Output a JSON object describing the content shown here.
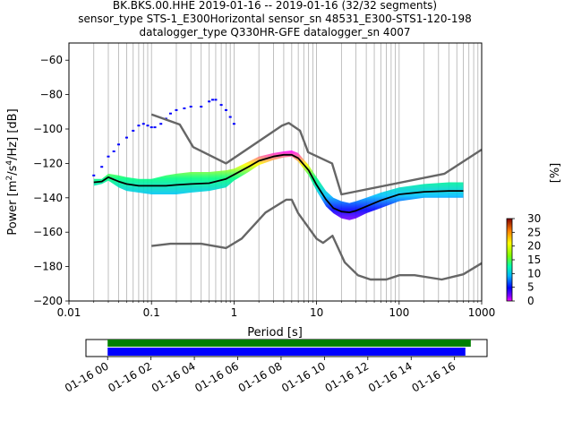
{
  "chart_data": {
    "type": "line",
    "title_lines": [
      "BK.BKS.00.HHE   2019-01-16 -- 2019-01-16  (32/32 segments)",
      "sensor_type STS-1_E300Horizontal sensor_sn 48531_E300-STS1-120-198",
      "datalogger_type Q330HR-GFE datalogger_sn 4007"
    ],
    "xlabel": "Period [s]",
    "ylabel_parts": [
      "Power [m",
      "2",
      "/s",
      "4",
      "/Hz] [dB]"
    ],
    "xscale": "log",
    "xlim": [
      0.01,
      1000
    ],
    "ylim": [
      -200,
      -50
    ],
    "xticks": [
      {
        "v": 0.01,
        "label": "0.01"
      },
      {
        "v": 0.1,
        "label": "0.1"
      },
      {
        "v": 1,
        "label": "1"
      },
      {
        "v": 10,
        "label": "10"
      },
      {
        "v": 100,
        "label": "100"
      },
      {
        "v": 1000,
        "label": "1000"
      }
    ],
    "yticks": [
      {
        "v": -60,
        "label": "−60"
      },
      {
        "v": -80,
        "label": "−80"
      },
      {
        "v": -100,
        "label": "−100"
      },
      {
        "v": -120,
        "label": "−120"
      },
      {
        "v": -140,
        "label": "−140"
      },
      {
        "v": -160,
        "label": "−160"
      },
      {
        "v": -180,
        "label": "−180"
      },
      {
        "v": -200,
        "label": "−200"
      }
    ],
    "grid_periods": [
      0.02,
      0.03,
      0.04,
      0.05,
      0.06,
      0.07,
      0.08,
      0.09,
      0.2,
      0.3,
      0.4,
      0.5,
      0.6,
      0.7,
      0.8,
      0.9,
      2,
      3,
      4,
      5,
      6,
      7,
      8,
      9,
      20,
      30,
      40,
      50,
      60,
      70,
      80,
      90,
      200,
      300,
      400,
      500,
      600,
      700,
      800,
      900
    ],
    "series": [
      {
        "name": "NHNM",
        "color": "#666666",
        "x": [
          0.1,
          0.22,
          0.32,
          0.8,
          3.8,
          4.6,
          6.3,
          7.9,
          15.4,
          20,
          354.8,
          1000
        ],
        "y": [
          -91.5,
          -97.4,
          -110.5,
          -120,
          -98,
          -96.5,
          -101,
          -113.5,
          -120,
          -138,
          -126,
          -112
        ]
      },
      {
        "name": "NLNM",
        "color": "#666666",
        "x": [
          0.1,
          0.17,
          0.4,
          0.8,
          1.24,
          2.4,
          4.3,
          5,
          6,
          10,
          12,
          15.6,
          21.9,
          31.6,
          45,
          70,
          101,
          154,
          328,
          600,
          1000
        ],
        "y": [
          -168,
          -166.7,
          -166.7,
          -169.2,
          -163.7,
          -148.6,
          -141.1,
          -141.1,
          -149,
          -163.8,
          -166.2,
          -162.1,
          -177.5,
          -185,
          -187.5,
          -187.5,
          -185,
          -185,
          -187.5,
          -184.5,
          -178
        ]
      },
      {
        "name": "Mean PSD",
        "color": "#000000",
        "x": [
          0.02,
          0.025,
          0.03,
          0.04,
          0.05,
          0.07,
          0.1,
          0.15,
          0.2,
          0.3,
          0.5,
          0.8,
          1,
          1.5,
          2,
          3,
          4,
          5,
          6,
          8,
          10,
          13,
          16,
          20,
          25,
          30,
          40,
          60,
          100,
          200,
          400,
          600
        ],
        "y": [
          -131,
          -130.5,
          -128,
          -130.5,
          -132,
          -133,
          -133,
          -133,
          -132.5,
          -132,
          -131.5,
          -129,
          -126.5,
          -122,
          -118.5,
          -116,
          -115,
          -115,
          -117,
          -124,
          -132.5,
          -141,
          -146,
          -148,
          -148.5,
          -147.5,
          -145,
          -141.5,
          -138,
          -136.5,
          -136,
          -136
        ]
      }
    ],
    "psd_spread": {
      "x": [
        0.02,
        0.025,
        0.03,
        0.04,
        0.05,
        0.07,
        0.1,
        0.15,
        0.2,
        0.3,
        0.5,
        0.8,
        1,
        1.5,
        2,
        3,
        4,
        5,
        6,
        8,
        10,
        13,
        16,
        20,
        25,
        30,
        40,
        60,
        100,
        200,
        400,
        600
      ],
      "upper": [
        -129,
        -129,
        -126,
        -127,
        -128,
        -129,
        -129,
        -127,
        -126,
        -125,
        -125,
        -124,
        -123,
        -119,
        -116,
        -114,
        -113,
        -112.5,
        -114,
        -121,
        -128,
        -136,
        -140,
        -142,
        -143,
        -142,
        -140,
        -137,
        -134,
        -132,
        -131,
        -131
      ],
      "lower": [
        -133,
        -132,
        -130,
        -134,
        -136,
        -137,
        -138,
        -138,
        -138,
        -137,
        -136,
        -134,
        -130,
        -125,
        -121,
        -118,
        -116.5,
        -116,
        -119,
        -127,
        -136,
        -145,
        -149,
        -152,
        -153,
        -152,
        -149,
        -146,
        -142,
        -140,
        -140,
        -140
      ]
    },
    "outlier_trace": {
      "x": [
        0.02,
        0.025,
        0.03,
        0.035,
        0.04,
        0.05,
        0.06,
        0.07,
        0.08,
        0.09,
        0.1,
        0.11,
        0.13,
        0.15,
        0.17,
        0.2,
        0.25,
        0.3,
        0.4,
        0.5,
        0.55,
        0.6,
        0.7,
        0.8,
        0.9,
        1.0
      ],
      "y": [
        -127,
        -122,
        -116,
        -113,
        -109,
        -105,
        -101,
        -98,
        -97,
        -98,
        -99,
        -99,
        -97,
        -94,
        -91,
        -89,
        -88,
        -87,
        -87,
        -84,
        -83,
        -83,
        -86,
        -89,
        -93,
        -97
      ]
    },
    "colorbar": {
      "label": "[%]",
      "min": 0,
      "max": 30,
      "ticks": [
        {
          "v": 0,
          "label": "0"
        },
        {
          "v": 5,
          "label": "5"
        },
        {
          "v": 10,
          "label": "10"
        },
        {
          "v": 15,
          "label": "15"
        },
        {
          "v": 20,
          "label": "20"
        },
        {
          "v": 25,
          "label": "25"
        },
        {
          "v": 30,
          "label": "30"
        }
      ]
    },
    "coverage": {
      "xlim_hours": [
        -1,
        17.5
      ],
      "ticks": [
        {
          "h": 0,
          "label": "01-16 00"
        },
        {
          "h": 2,
          "label": "01-16 02"
        },
        {
          "h": 4,
          "label": "01-16 04"
        },
        {
          "h": 6,
          "label": "01-16 06"
        },
        {
          "h": 8,
          "label": "01-16 08"
        },
        {
          "h": 10,
          "label": "01-16 10"
        },
        {
          "h": 12,
          "label": "01-16 12"
        },
        {
          "h": 14,
          "label": "01-16 14"
        },
        {
          "h": 16,
          "label": "01-16 16"
        }
      ],
      "bars": [
        {
          "name": "data",
          "start_h": 0,
          "end_h": 16.75,
          "color": "#008000"
        },
        {
          "name": "used",
          "start_h": 0,
          "end_h": 16.5,
          "color": "#0000ff"
        }
      ]
    }
  }
}
